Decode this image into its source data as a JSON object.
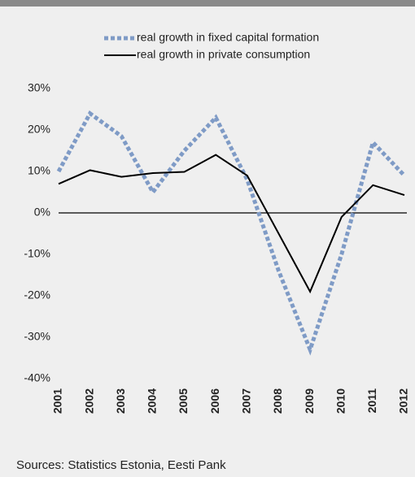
{
  "chart_data": {
    "type": "line",
    "categories": [
      "2001",
      "2002",
      "2003",
      "2004",
      "2005",
      "2006",
      "2007",
      "2008",
      "2009",
      "2010",
      "2011",
      "2012"
    ],
    "series": [
      {
        "name": "real growth in fixed capital formation",
        "color": "#7f9bc6",
        "dashed": true,
        "values": [
          10,
          24,
          18.5,
          5,
          15,
          23,
          8,
          -14,
          -33,
          -10,
          17,
          9
        ]
      },
      {
        "name": "real growth in private consumption",
        "color": "#000000",
        "dashed": false,
        "values": [
          7,
          10.3,
          8.7,
          9.6,
          9.9,
          14,
          9,
          -5,
          -19,
          -1,
          6.7,
          4.3
        ]
      }
    ],
    "ylim": [
      -40,
      30
    ],
    "yticks": [
      {
        "value": -40,
        "label": "-40%"
      },
      {
        "value": -30,
        "label": "-30%"
      },
      {
        "value": -20,
        "label": "-20%"
      },
      {
        "value": -10,
        "label": "-10%"
      },
      {
        "value": 0,
        "label": "0%"
      },
      {
        "value": 10,
        "label": "10%"
      },
      {
        "value": 20,
        "label": "20%"
      },
      {
        "value": 30,
        "label": "30%"
      }
    ],
    "grid": false,
    "source": "Sources: Statistics Estonia, Eesti Pank"
  }
}
